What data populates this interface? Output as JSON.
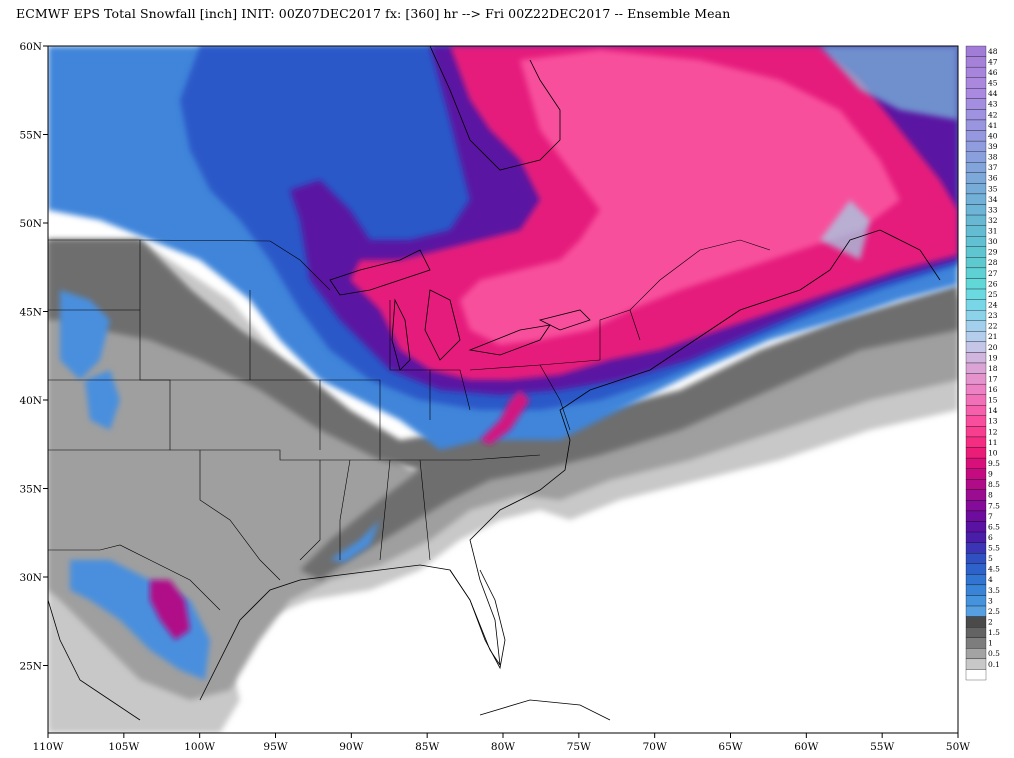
{
  "title": "ECMWF EPS Total Snowfall [inch] INIT: 00Z07DEC2017 fx: [360] hr --> Fri 00Z22DEC2017 -- Ensemble Mean",
  "map": {
    "lon_range": [
      -110,
      -50
    ],
    "lat_range": [
      21,
      60
    ],
    "lon_ticks": [
      "110W",
      "105W",
      "100W",
      "95W",
      "90W",
      "85W",
      "80W",
      "75W",
      "70W",
      "65W",
      "60W",
      "55W",
      "50W"
    ],
    "lat_ticks": [
      "60N",
      "55N",
      "50N",
      "45N",
      "40N",
      "35N",
      "30N",
      "25N"
    ]
  },
  "legend": {
    "levels": [
      {
        "label": "48",
        "color": "#a27dd8"
      },
      {
        "label": "47",
        "color": "#a581da"
      },
      {
        "label": "46",
        "color": "#a885dc"
      },
      {
        "label": "45",
        "color": "#aa88dd"
      },
      {
        "label": "44",
        "color": "#a98ae0"
      },
      {
        "label": "43",
        "color": "#a48ee0"
      },
      {
        "label": "42",
        "color": "#9f92e0"
      },
      {
        "label": "41",
        "color": "#9a95df"
      },
      {
        "label": "40",
        "color": "#9598de"
      },
      {
        "label": "39",
        "color": "#8f9cdd"
      },
      {
        "label": "38",
        "color": "#89a0dc"
      },
      {
        "label": "37",
        "color": "#83a4db"
      },
      {
        "label": "36",
        "color": "#7da8da"
      },
      {
        "label": "35",
        "color": "#77acd9"
      },
      {
        "label": "34",
        "color": "#72b0d8"
      },
      {
        "label": "33",
        "color": "#6db4d6"
      },
      {
        "label": "32",
        "color": "#68b8d4"
      },
      {
        "label": "31",
        "color": "#64bcd2"
      },
      {
        "label": "30",
        "color": "#61c0d1"
      },
      {
        "label": "29",
        "color": "#5fc5d0"
      },
      {
        "label": "28",
        "color": "#5ecad0"
      },
      {
        "label": "27",
        "color": "#5fd0d3"
      },
      {
        "label": "26",
        "color": "#62d7d8"
      },
      {
        "label": "25",
        "color": "#6ad9e0"
      },
      {
        "label": "24",
        "color": "#78d6e6"
      },
      {
        "label": "23",
        "color": "#8cd3ea"
      },
      {
        "label": "22",
        "color": "#a2d0ec"
      },
      {
        "label": "21",
        "color": "#b5cdec"
      },
      {
        "label": "20",
        "color": "#c5c5e8"
      },
      {
        "label": "19",
        "color": "#d0b5df"
      },
      {
        "label": "18",
        "color": "#daa4d6"
      },
      {
        "label": "17",
        "color": "#e493cd"
      },
      {
        "label": "16",
        "color": "#ec82c3"
      },
      {
        "label": "15",
        "color": "#f270b8"
      },
      {
        "label": "14",
        "color": "#f65fab"
      },
      {
        "label": "13",
        "color": "#f84e9d"
      },
      {
        "label": "12",
        "color": "#f83e8f"
      },
      {
        "label": "11",
        "color": "#f42d82"
      },
      {
        "label": "10",
        "color": "#ea1d78"
      },
      {
        "label": "9.5",
        "color": "#d8117a"
      },
      {
        "label": "9",
        "color": "#c40c80"
      },
      {
        "label": "8.5",
        "color": "#b00c88"
      },
      {
        "label": "8",
        "color": "#9a0c90"
      },
      {
        "label": "7.5",
        "color": "#850c98"
      },
      {
        "label": "7",
        "color": "#6e0c9e"
      },
      {
        "label": "6.5",
        "color": "#5a12a2"
      },
      {
        "label": "6",
        "color": "#4a1ea8"
      },
      {
        "label": "5.5",
        "color": "#3b35b5"
      },
      {
        "label": "5",
        "color": "#3050c2"
      },
      {
        "label": "4.5",
        "color": "#2d62cb"
      },
      {
        "label": "4",
        "color": "#3274d2"
      },
      {
        "label": "3.5",
        "color": "#3a84d8"
      },
      {
        "label": "3",
        "color": "#4593dd"
      },
      {
        "label": "2.5",
        "color": "#569fe0"
      },
      {
        "label": "2",
        "color": "#4a4a4a"
      },
      {
        "label": "1.5",
        "color": "#636363"
      },
      {
        "label": "1",
        "color": "#7d7d7d"
      },
      {
        "label": "0.5",
        "color": "#a3a3a3"
      },
      {
        "label": "0.1",
        "color": "#c8c8c8"
      },
      {
        "label": "",
        "color": "#ffffff"
      }
    ]
  },
  "colors": {
    "ocean": "#ffffff",
    "light_gray": "#c8c8c8",
    "mid_gray": "#9f9f9f",
    "dark_gray": "#7a7a7a",
    "light_blue": "#5aa2e2",
    "mid_blue": "#3a7ad8",
    "deep_blue": "#2e55c6",
    "purple": "#5614a6",
    "magenta": "#e51d7c",
    "pink": "#f8509c",
    "cyan": "#7ee0ea"
  }
}
